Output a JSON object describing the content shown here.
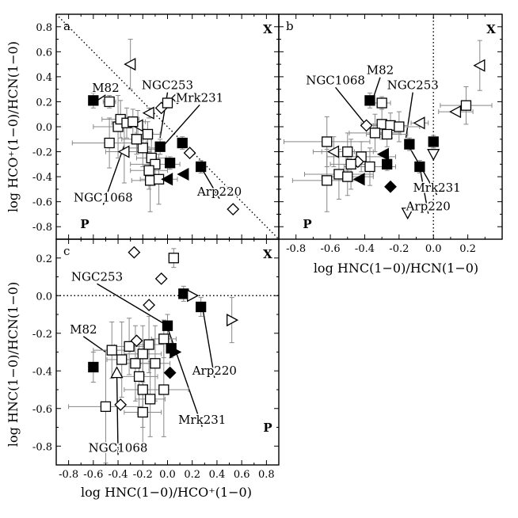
{
  "chart_data": [
    {
      "id": "a",
      "type": "scatter",
      "panel_letter": "a",
      "xlabel": "",
      "ylabel": "log HCO⁺(1−0)/HCN(1−0)",
      "xlim": [
        -0.9,
        0.9
      ],
      "ylim": [
        -0.9,
        0.9
      ],
      "xticks": [],
      "yticks": [
        "0.8",
        "0.6",
        "0.4",
        "0.2",
        "0.0",
        "-0.2",
        "-0.4",
        "-0.6",
        "-0.8"
      ],
      "corner_labels": {
        "top_right": "X",
        "bottom_left": "P"
      },
      "reference_lines": [
        {
          "style": "dotted",
          "from": [
            -0.9,
            0.9
          ],
          "to": [
            0.9,
            -0.9
          ]
        }
      ],
      "annotations": [
        {
          "text": "M82",
          "at": [
            -0.5,
            0.28
          ],
          "points_to": [
            -0.6,
            0.19
          ]
        },
        {
          "text": "NGC253",
          "at": [
            0.0,
            0.3
          ],
          "points_to": [
            -0.06,
            -0.09
          ]
        },
        {
          "text": "Mrk231",
          "at": [
            0.26,
            0.2
          ],
          "points_to": [
            -0.04,
            -0.16
          ]
        },
        {
          "text": "Arp220",
          "at": [
            0.42,
            -0.55
          ],
          "points_to": [
            0.28,
            -0.34
          ]
        },
        {
          "text": "NGC1068",
          "at": [
            -0.52,
            -0.6
          ],
          "points_to": [
            -0.35,
            -0.15
          ]
        }
      ],
      "points": [
        {
          "marker": "square-filled",
          "x": -0.6,
          "y": 0.21,
          "yerr": 0.06
        },
        {
          "marker": "square-open",
          "x": -0.47,
          "y": 0.2,
          "xerr": 0.05,
          "yerr": 0.05
        },
        {
          "marker": "tri-left-open",
          "x": -0.3,
          "y": 0.5,
          "yerr": 0.2
        },
        {
          "marker": "tri-left-open",
          "x": -0.15,
          "y": 0.11,
          "yerr": 0.04
        },
        {
          "marker": "diamond-open",
          "x": -0.05,
          "y": 0.15,
          "yerr": 0.03
        },
        {
          "marker": "square-open",
          "x": 0.0,
          "y": 0.19,
          "yerr": 0.04
        },
        {
          "marker": "diamond-open",
          "x": 0.08,
          "y": 0.23,
          "yerr": 0.03
        },
        {
          "marker": "tri-left-open",
          "x": -0.24,
          "y": 0.01,
          "yerr": 0.12
        },
        {
          "marker": "square-open",
          "x": -0.4,
          "y": 0.0,
          "xerr": 0.2,
          "yerr": 0.25
        },
        {
          "marker": "square-open",
          "x": -0.38,
          "y": 0.06,
          "xerr": 0.15,
          "yerr": 0.15
        },
        {
          "marker": "square-open",
          "x": -0.33,
          "y": 0.03,
          "xerr": 0.12,
          "yerr": 0.12
        },
        {
          "marker": "square-open",
          "x": -0.28,
          "y": 0.04,
          "xerr": 0.1,
          "yerr": 0.1
        },
        {
          "marker": "square-open",
          "x": -0.47,
          "y": -0.13,
          "xerr": 0.3,
          "yerr": 0.2
        },
        {
          "marker": "tri-left-open",
          "x": -0.35,
          "y": -0.2,
          "xerr": 0.15,
          "yerr": 0.25
        },
        {
          "marker": "square-open",
          "x": -0.2,
          "y": -0.17,
          "xerr": 0.15,
          "yerr": 0.15
        },
        {
          "marker": "square-open",
          "x": -0.13,
          "y": -0.25,
          "xerr": 0.12,
          "yerr": 0.2
        },
        {
          "marker": "square-open",
          "x": -0.1,
          "y": -0.3,
          "xerr": 0.2,
          "yerr": 0.12
        },
        {
          "marker": "square-open",
          "x": -0.15,
          "y": -0.35,
          "xerr": 0.15,
          "yerr": 0.15
        },
        {
          "marker": "square-open",
          "x": -0.14,
          "y": -0.43,
          "xerr": 0.15,
          "yerr": 0.25
        },
        {
          "marker": "square-open",
          "x": -0.07,
          "y": -0.42,
          "xerr": 0.15,
          "yerr": 0.2
        },
        {
          "marker": "square-open",
          "x": -0.25,
          "y": -0.1,
          "xerr": 0.12,
          "yerr": 0.12
        },
        {
          "marker": "square-open",
          "x": -0.16,
          "y": -0.06,
          "xerr": 0.1,
          "yerr": 0.1
        },
        {
          "marker": "square-filled",
          "x": -0.06,
          "y": -0.16,
          "yerr": 0.06
        },
        {
          "marker": "square-filled",
          "x": 0.12,
          "y": -0.13,
          "yerr": 0.05
        },
        {
          "marker": "diamond-open",
          "x": 0.18,
          "y": -0.21
        },
        {
          "marker": "square-filled",
          "x": 0.02,
          "y": -0.29,
          "yerr": 0.05
        },
        {
          "marker": "tri-left-filled",
          "x": 0.0,
          "y": -0.42
        },
        {
          "marker": "tri-left-filled",
          "x": 0.13,
          "y": -0.38
        },
        {
          "marker": "square-filled",
          "x": 0.27,
          "y": -0.32,
          "yerr": 0.05
        },
        {
          "marker": "diamond-open",
          "x": 0.53,
          "y": -0.66
        }
      ]
    },
    {
      "id": "b",
      "type": "scatter",
      "panel_letter": "b",
      "xlabel": "log HNC(1−0)/HCN(1−0)",
      "ylabel": "",
      "xlim": [
        -0.9,
        0.4
      ],
      "ylim": [
        -0.9,
        0.9
      ],
      "xticks": [
        "-0.8",
        "-0.6",
        "-0.4",
        "-0.2",
        "0.0",
        "0.2"
      ],
      "yticks": [],
      "corner_labels": {
        "top_right": "X",
        "bottom_left": "P"
      },
      "reference_lines": [
        {
          "style": "dotted",
          "from": [
            0.0,
            -0.9
          ],
          "to": [
            0.0,
            0.9
          ]
        }
      ],
      "annotations": [
        {
          "text": "NGC1068",
          "at": [
            -0.57,
            0.34
          ],
          "points_to": [
            -0.39,
            0.01
          ]
        },
        {
          "text": "M82",
          "at": [
            -0.31,
            0.42
          ],
          "points_to": [
            -0.36,
            0.19
          ]
        },
        {
          "text": "NGC253",
          "at": [
            -0.12,
            0.3
          ],
          "points_to": [
            -0.16,
            -0.09
          ]
        },
        {
          "text": "Mrk231",
          "at": [
            0.02,
            -0.52
          ],
          "points_to": [
            -0.15,
            -0.14
          ]
        },
        {
          "text": "Arp220",
          "at": [
            -0.03,
            -0.67
          ],
          "points_to": [
            -0.08,
            -0.32
          ]
        }
      ],
      "points": [
        {
          "marker": "square-filled",
          "x": -0.37,
          "y": 0.21,
          "yerr": 0.06
        },
        {
          "marker": "square-open",
          "x": -0.3,
          "y": 0.19,
          "xerr": 0.05,
          "yerr": 0.05
        },
        {
          "marker": "tri-left-open",
          "x": 0.27,
          "y": 0.49,
          "yerr": 0.2
        },
        {
          "marker": "square-open",
          "x": 0.19,
          "y": 0.17,
          "xerr": 0.15,
          "yerr": 0.15
        },
        {
          "marker": "tri-left-open",
          "x": 0.13,
          "y": 0.12,
          "xerr": 0.1
        },
        {
          "marker": "tri-left-open",
          "x": -0.08,
          "y": 0.03,
          "xerr": 0.05
        },
        {
          "marker": "diamond-open",
          "x": -0.39,
          "y": 0.01
        },
        {
          "marker": "square-open",
          "x": -0.3,
          "y": 0.02,
          "xerr": 0.12,
          "yerr": 0.12
        },
        {
          "marker": "square-open",
          "x": -0.25,
          "y": 0.01,
          "xerr": 0.1,
          "yerr": 0.1
        },
        {
          "marker": "square-open",
          "x": -0.2,
          "y": 0.0,
          "xerr": 0.12,
          "yerr": 0.12
        },
        {
          "marker": "square-open",
          "x": -0.34,
          "y": -0.05,
          "xerr": 0.15,
          "yerr": 0.15
        },
        {
          "marker": "square-open",
          "x": -0.27,
          "y": -0.06,
          "xerr": 0.12,
          "yerr": 0.1
        },
        {
          "marker": "square-open",
          "x": -0.62,
          "y": -0.12,
          "xerr": 0.25,
          "yerr": 0.2
        },
        {
          "marker": "tri-left-open",
          "x": -0.58,
          "y": -0.2,
          "xerr": 0.12,
          "yerr": 0.12
        },
        {
          "marker": "square-open",
          "x": -0.5,
          "y": -0.2,
          "xerr": 0.15,
          "yerr": 0.15
        },
        {
          "marker": "square-open",
          "x": -0.42,
          "y": -0.24,
          "xerr": 0.2,
          "yerr": 0.12
        },
        {
          "marker": "diamond-open",
          "x": -0.44,
          "y": -0.28
        },
        {
          "marker": "square-open",
          "x": -0.48,
          "y": -0.3,
          "xerr": 0.12,
          "yerr": 0.2
        },
        {
          "marker": "square-open",
          "x": -0.37,
          "y": -0.32,
          "xerr": 0.15,
          "yerr": 0.15
        },
        {
          "marker": "square-open",
          "x": -0.55,
          "y": -0.38,
          "xerr": 0.2,
          "yerr": 0.2
        },
        {
          "marker": "square-open",
          "x": -0.62,
          "y": -0.43,
          "xerr": 0.2,
          "yerr": 0.25
        },
        {
          "marker": "square-open",
          "x": -0.5,
          "y": -0.4,
          "xerr": 0.15,
          "yerr": 0.15
        },
        {
          "marker": "square-filled",
          "x": -0.14,
          "y": -0.14,
          "yerr": 0.05
        },
        {
          "marker": "square-filled",
          "x": 0.0,
          "y": -0.12,
          "yerr": 0.05
        },
        {
          "marker": "square-filled",
          "x": -0.27,
          "y": -0.3,
          "yerr": 0.05
        },
        {
          "marker": "tri-left-filled",
          "x": -0.29,
          "y": -0.22
        },
        {
          "marker": "tri-left-filled",
          "x": -0.43,
          "y": -0.42
        },
        {
          "marker": "diamond-filled",
          "x": -0.25,
          "y": -0.48
        },
        {
          "marker": "square-filled",
          "x": -0.08,
          "y": -0.32,
          "yerr": 0.05
        },
        {
          "marker": "tri-down-open",
          "x": 0.0,
          "y": -0.22
        },
        {
          "marker": "tri-down-open",
          "x": -0.15,
          "y": -0.69
        }
      ]
    },
    {
      "id": "c",
      "type": "scatter",
      "panel_letter": "c",
      "xlabel": "log HNC(1−0)/HCO⁺(1−0)",
      "ylabel": "log HNC(1−0)/HCN(1−0)",
      "xlim": [
        -0.9,
        0.9
      ],
      "ylim": [
        -0.9,
        0.3
      ],
      "xticks": [
        "-0.8",
        "-0.6",
        "-0.4",
        "-0.2",
        "0.0",
        "0.2",
        "0.4",
        "0.6",
        "0.8"
      ],
      "yticks": [
        "0.2",
        "0.0",
        "-0.2",
        "-0.4",
        "-0.6",
        "-0.8"
      ],
      "corner_labels": {
        "top_right": "X",
        "bottom_right": "P"
      },
      "reference_lines": [
        {
          "style": "dotted",
          "from": [
            -0.9,
            0.0
          ],
          "to": [
            0.9,
            0.0
          ]
        }
      ],
      "annotations": [
        {
          "text": "NGC253",
          "at": [
            -0.57,
            0.08
          ],
          "points_to": [
            0.0,
            -0.16
          ]
        },
        {
          "text": "M82",
          "at": [
            -0.68,
            -0.2
          ],
          "points_to": [
            -0.5,
            -0.3
          ]
        },
        {
          "text": "Arp220",
          "at": [
            0.38,
            -0.42
          ],
          "points_to": [
            0.28,
            -0.05
          ]
        },
        {
          "text": "Mrk231",
          "at": [
            0.28,
            -0.68
          ],
          "points_to": [
            0.0,
            -0.17
          ]
        },
        {
          "text": "NGC1068",
          "at": [
            -0.4,
            -0.83
          ],
          "points_to": [
            -0.41,
            -0.41
          ]
        }
      ],
      "points": [
        {
          "marker": "diamond-open",
          "x": -0.27,
          "y": 0.23
        },
        {
          "marker": "square-open",
          "x": 0.05,
          "y": 0.2,
          "yerr": 0.05
        },
        {
          "marker": "diamond-open",
          "x": -0.05,
          "y": 0.09
        },
        {
          "marker": "square-filled",
          "x": 0.13,
          "y": 0.01,
          "yerr": 0.04
        },
        {
          "marker": "tri-right-open",
          "x": 0.2,
          "y": 0.0
        },
        {
          "marker": "diamond-open",
          "x": -0.15,
          "y": -0.05
        },
        {
          "marker": "square-filled",
          "x": 0.0,
          "y": -0.16,
          "yerr": 0.06
        },
        {
          "marker": "square-filled",
          "x": 0.27,
          "y": -0.06,
          "yerr": 0.05
        },
        {
          "marker": "tri-right-open",
          "x": 0.52,
          "y": -0.13,
          "yerr": 0.12
        },
        {
          "marker": "square-open",
          "x": -0.03,
          "y": -0.23,
          "xerr": 0.1,
          "yerr": 0.1
        },
        {
          "marker": "square-filled",
          "x": 0.03,
          "y": -0.28,
          "yerr": 0.05
        },
        {
          "marker": "tri-right-filled",
          "x": 0.06,
          "y": -0.3
        },
        {
          "marker": "diamond-filled",
          "x": 0.02,
          "y": -0.41
        },
        {
          "marker": "square-filled",
          "x": -0.6,
          "y": -0.38,
          "yerr": 0.08
        },
        {
          "marker": "square-open",
          "x": -0.45,
          "y": -0.29,
          "xerr": 0.15,
          "yerr": 0.15
        },
        {
          "marker": "square-open",
          "x": -0.37,
          "y": -0.34,
          "xerr": 0.12,
          "yerr": 0.2
        },
        {
          "marker": "square-open",
          "x": -0.31,
          "y": -0.27,
          "xerr": 0.12,
          "yerr": 0.15
        },
        {
          "marker": "diamond-open",
          "x": -0.25,
          "y": -0.24
        },
        {
          "marker": "square-open",
          "x": -0.26,
          "y": -0.36,
          "xerr": 0.15,
          "yerr": 0.2
        },
        {
          "marker": "square-open",
          "x": -0.2,
          "y": -0.31,
          "xerr": 0.15,
          "yerr": 0.15
        },
        {
          "marker": "square-open",
          "x": -0.15,
          "y": -0.26,
          "xerr": 0.12,
          "yerr": 0.15
        },
        {
          "marker": "square-open",
          "x": -0.1,
          "y": -0.36,
          "xerr": 0.12,
          "yerr": 0.2
        },
        {
          "marker": "square-open",
          "x": -0.23,
          "y": -0.43,
          "xerr": 0.15,
          "yerr": 0.2
        },
        {
          "marker": "square-open",
          "x": -0.2,
          "y": -0.5,
          "xerr": 0.15,
          "yerr": 0.2
        },
        {
          "marker": "square-open",
          "x": -0.14,
          "y": -0.55,
          "xerr": 0.12,
          "yerr": 0.2
        },
        {
          "marker": "square-open",
          "x": -0.2,
          "y": -0.62,
          "xerr": 0.15,
          "yerr": 0.2
        },
        {
          "marker": "square-open",
          "x": -0.03,
          "y": -0.5,
          "xerr": 0.2,
          "yerr": 0.25
        },
        {
          "marker": "square-open",
          "x": -0.5,
          "y": -0.59,
          "xerr": 0.3,
          "yerr": 0.3
        },
        {
          "marker": "diamond-open",
          "x": -0.38,
          "y": -0.58
        },
        {
          "marker": "tri-up-open",
          "x": -0.41,
          "y": -0.41
        }
      ]
    }
  ]
}
